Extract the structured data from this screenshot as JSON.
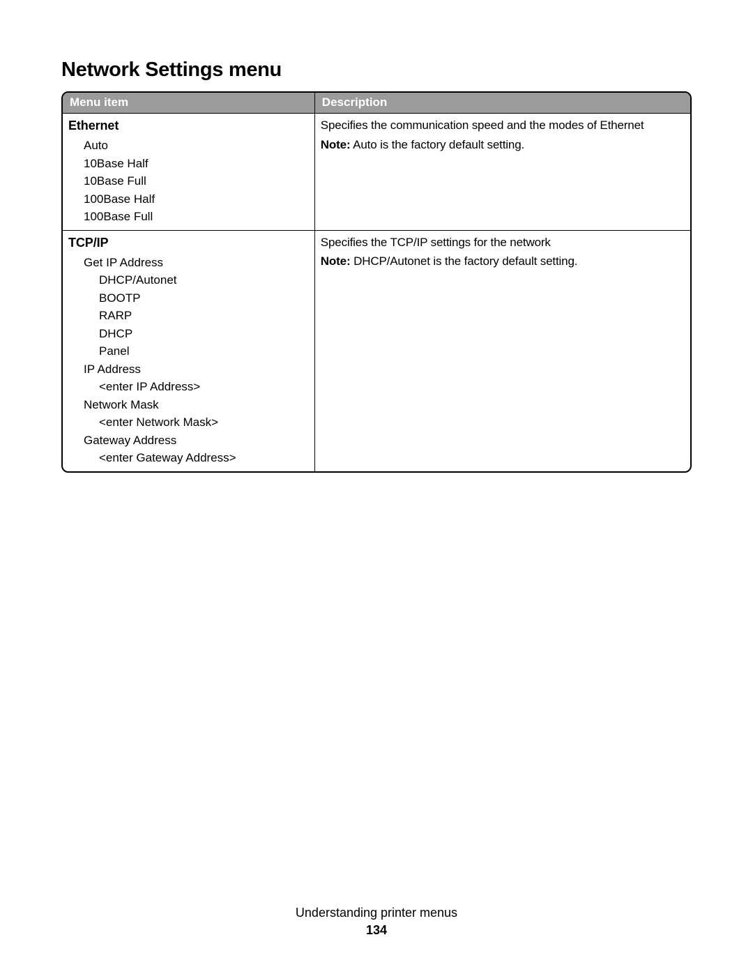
{
  "title": "Network Settings menu",
  "columns": {
    "menu_item": "Menu item",
    "description": "Description"
  },
  "rows": [
    {
      "name": "Ethernet",
      "items": [
        {
          "label": "Auto",
          "level": 1
        },
        {
          "label": "10Base Half",
          "level": 1
        },
        {
          "label": "10Base Full",
          "level": 1
        },
        {
          "label": "100Base Half",
          "level": 1
        },
        {
          "label": "100Base Full",
          "level": 1
        }
      ],
      "description": "Specifies the communication speed and the modes of Ethernet",
      "note_label": "Note:",
      "note_text": " Auto is the factory default setting."
    },
    {
      "name": "TCP/IP",
      "items": [
        {
          "label": "Get IP Address",
          "level": 1
        },
        {
          "label": "DHCP/Autonet",
          "level": 2
        },
        {
          "label": "BOOTP",
          "level": 2
        },
        {
          "label": "RARP",
          "level": 2
        },
        {
          "label": "DHCP",
          "level": 2
        },
        {
          "label": "Panel",
          "level": 2
        },
        {
          "label": "IP Address",
          "level": 1
        },
        {
          "label": "<enter IP Address>",
          "level": 2
        },
        {
          "label": "Network Mask",
          "level": 1
        },
        {
          "label": "<enter Network Mask>",
          "level": 2
        },
        {
          "label": "Gateway Address",
          "level": 1
        },
        {
          "label": "<enter Gateway Address>",
          "level": 2
        }
      ],
      "description": "Specifies the TCP/IP settings for the network",
      "note_label": "Note:",
      "note_text": " DHCP/Autonet is the factory default setting."
    }
  ],
  "footer": {
    "section": "Understanding printer menus",
    "page": "134"
  },
  "style": {
    "header_bg": "#9a9b9c",
    "header_fg": "#ffffff",
    "border_color": "#000000",
    "body_font_size_pt": 13,
    "title_font_size_pt": 22
  }
}
